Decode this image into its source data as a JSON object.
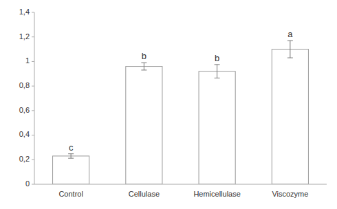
{
  "chart_data": {
    "type": "bar",
    "categories": [
      "Control",
      "Cellulase",
      "Hemicellulase",
      "Viscozyme"
    ],
    "values": [
      0.23,
      0.96,
      0.92,
      1.1
    ],
    "errors": [
      0.018,
      0.03,
      0.055,
      0.07
    ],
    "letters": [
      "c",
      "b",
      "b",
      "a"
    ],
    "color": "#ffffff",
    "ylim": [
      0,
      1.4
    ],
    "yticks": [
      0,
      {
        "value": 0.2,
        "label": "0,2"
      },
      {
        "value": 0.4,
        "label": "0,4"
      },
      {
        "value": 0.6,
        "label": "0,6"
      },
      {
        "value": 0.8,
        "label": "0,8"
      },
      1,
      {
        "value": 1.2,
        "label": "1,2"
      },
      {
        "value": 1.4,
        "label": "1,4"
      }
    ],
    "grid": false
  }
}
